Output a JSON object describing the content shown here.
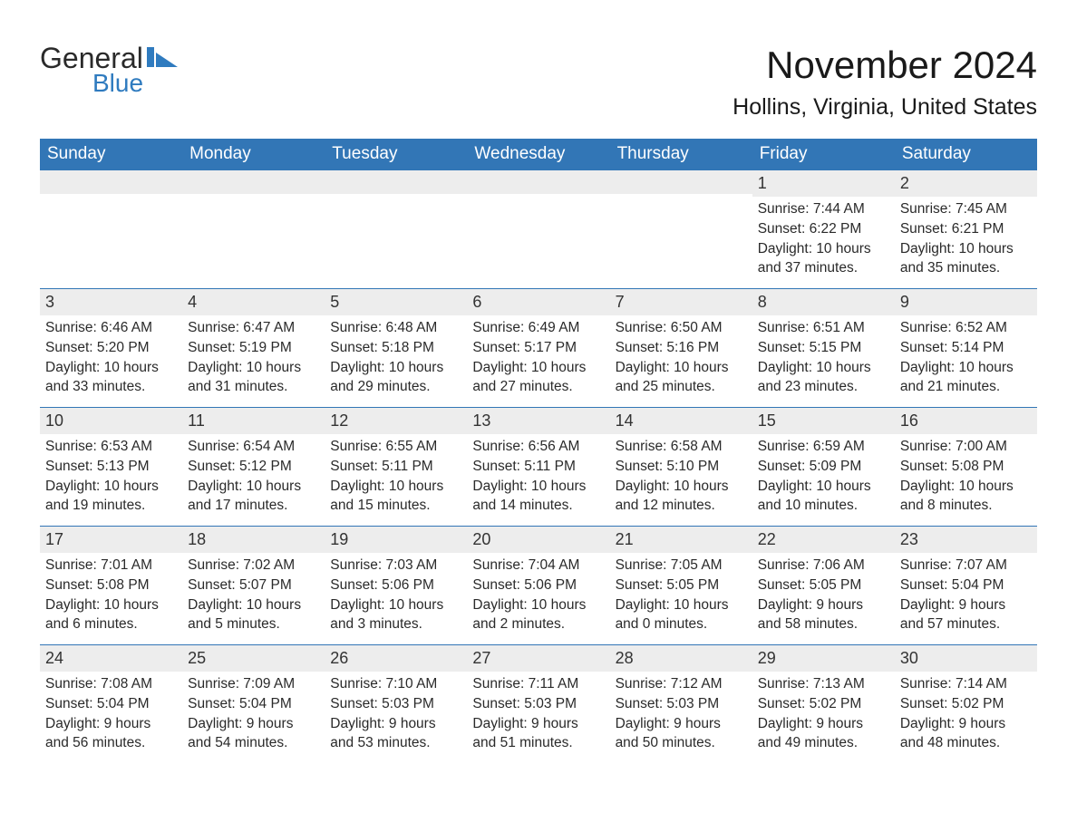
{
  "logo": {
    "text1": "General",
    "text2": "Blue"
  },
  "colors": {
    "header_bg": "#3276b6",
    "header_fg": "#ffffff",
    "row_rule": "#3276b6",
    "daynum_bg": "#ededed",
    "page_bg": "#ffffff",
    "body_text": "#2a2a2a",
    "logo_blue": "#2f7bbf"
  },
  "typography": {
    "title_fontsize": 42,
    "location_fontsize": 25,
    "weekday_fontsize": 19,
    "daynum_fontsize": 18,
    "body_fontsize": 15.5,
    "font_family": "Arial"
  },
  "title": "November 2024",
  "location": "Hollins, Virginia, United States",
  "weekdays": [
    "Sunday",
    "Monday",
    "Tuesday",
    "Wednesday",
    "Thursday",
    "Friday",
    "Saturday"
  ],
  "labels": {
    "sunrise": "Sunrise:",
    "sunset": "Sunset:",
    "daylight": "Daylight:"
  },
  "weeks": [
    [
      null,
      null,
      null,
      null,
      null,
      {
        "n": "1",
        "sunrise": "7:44 AM",
        "sunset": "6:22 PM",
        "daylight": "10 hours and 37 minutes."
      },
      {
        "n": "2",
        "sunrise": "7:45 AM",
        "sunset": "6:21 PM",
        "daylight": "10 hours and 35 minutes."
      }
    ],
    [
      {
        "n": "3",
        "sunrise": "6:46 AM",
        "sunset": "5:20 PM",
        "daylight": "10 hours and 33 minutes."
      },
      {
        "n": "4",
        "sunrise": "6:47 AM",
        "sunset": "5:19 PM",
        "daylight": "10 hours and 31 minutes."
      },
      {
        "n": "5",
        "sunrise": "6:48 AM",
        "sunset": "5:18 PM",
        "daylight": "10 hours and 29 minutes."
      },
      {
        "n": "6",
        "sunrise": "6:49 AM",
        "sunset": "5:17 PM",
        "daylight": "10 hours and 27 minutes."
      },
      {
        "n": "7",
        "sunrise": "6:50 AM",
        "sunset": "5:16 PM",
        "daylight": "10 hours and 25 minutes."
      },
      {
        "n": "8",
        "sunrise": "6:51 AM",
        "sunset": "5:15 PM",
        "daylight": "10 hours and 23 minutes."
      },
      {
        "n": "9",
        "sunrise": "6:52 AM",
        "sunset": "5:14 PM",
        "daylight": "10 hours and 21 minutes."
      }
    ],
    [
      {
        "n": "10",
        "sunrise": "6:53 AM",
        "sunset": "5:13 PM",
        "daylight": "10 hours and 19 minutes."
      },
      {
        "n": "11",
        "sunrise": "6:54 AM",
        "sunset": "5:12 PM",
        "daylight": "10 hours and 17 minutes."
      },
      {
        "n": "12",
        "sunrise": "6:55 AM",
        "sunset": "5:11 PM",
        "daylight": "10 hours and 15 minutes."
      },
      {
        "n": "13",
        "sunrise": "6:56 AM",
        "sunset": "5:11 PM",
        "daylight": "10 hours and 14 minutes."
      },
      {
        "n": "14",
        "sunrise": "6:58 AM",
        "sunset": "5:10 PM",
        "daylight": "10 hours and 12 minutes."
      },
      {
        "n": "15",
        "sunrise": "6:59 AM",
        "sunset": "5:09 PM",
        "daylight": "10 hours and 10 minutes."
      },
      {
        "n": "16",
        "sunrise": "7:00 AM",
        "sunset": "5:08 PM",
        "daylight": "10 hours and 8 minutes."
      }
    ],
    [
      {
        "n": "17",
        "sunrise": "7:01 AM",
        "sunset": "5:08 PM",
        "daylight": "10 hours and 6 minutes."
      },
      {
        "n": "18",
        "sunrise": "7:02 AM",
        "sunset": "5:07 PM",
        "daylight": "10 hours and 5 minutes."
      },
      {
        "n": "19",
        "sunrise": "7:03 AM",
        "sunset": "5:06 PM",
        "daylight": "10 hours and 3 minutes."
      },
      {
        "n": "20",
        "sunrise": "7:04 AM",
        "sunset": "5:06 PM",
        "daylight": "10 hours and 2 minutes."
      },
      {
        "n": "21",
        "sunrise": "7:05 AM",
        "sunset": "5:05 PM",
        "daylight": "10 hours and 0 minutes."
      },
      {
        "n": "22",
        "sunrise": "7:06 AM",
        "sunset": "5:05 PM",
        "daylight": "9 hours and 58 minutes."
      },
      {
        "n": "23",
        "sunrise": "7:07 AM",
        "sunset": "5:04 PM",
        "daylight": "9 hours and 57 minutes."
      }
    ],
    [
      {
        "n": "24",
        "sunrise": "7:08 AM",
        "sunset": "5:04 PM",
        "daylight": "9 hours and 56 minutes."
      },
      {
        "n": "25",
        "sunrise": "7:09 AM",
        "sunset": "5:04 PM",
        "daylight": "9 hours and 54 minutes."
      },
      {
        "n": "26",
        "sunrise": "7:10 AM",
        "sunset": "5:03 PM",
        "daylight": "9 hours and 53 minutes."
      },
      {
        "n": "27",
        "sunrise": "7:11 AM",
        "sunset": "5:03 PM",
        "daylight": "9 hours and 51 minutes."
      },
      {
        "n": "28",
        "sunrise": "7:12 AM",
        "sunset": "5:03 PM",
        "daylight": "9 hours and 50 minutes."
      },
      {
        "n": "29",
        "sunrise": "7:13 AM",
        "sunset": "5:02 PM",
        "daylight": "9 hours and 49 minutes."
      },
      {
        "n": "30",
        "sunrise": "7:14 AM",
        "sunset": "5:02 PM",
        "daylight": "9 hours and 48 minutes."
      }
    ]
  ]
}
